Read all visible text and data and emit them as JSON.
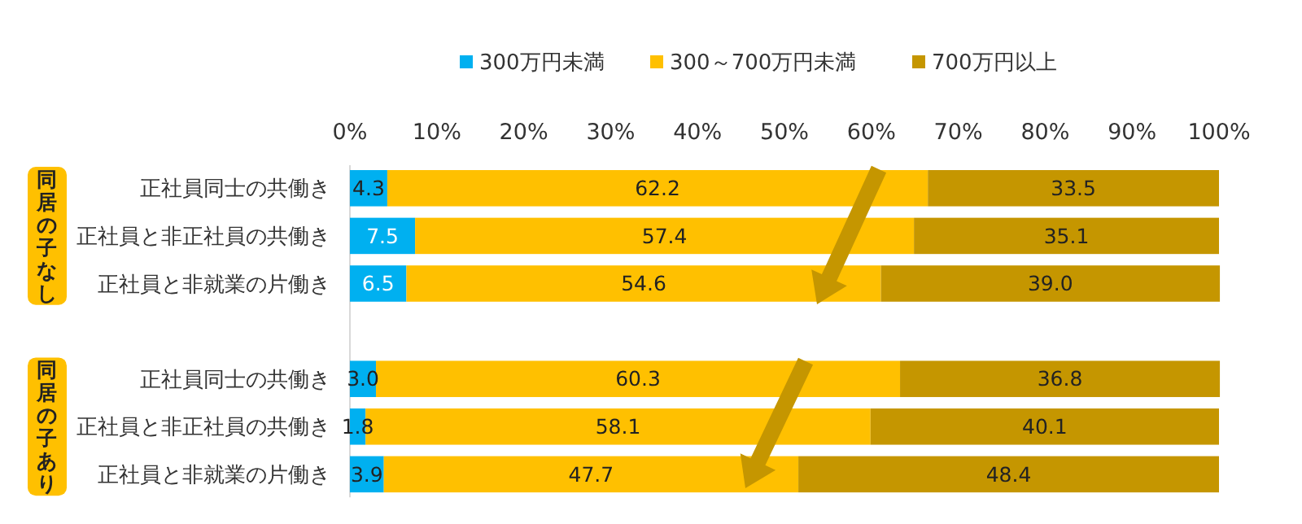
{
  "chart_data": {
    "type": "bar",
    "orientation": "horizontal",
    "stacked": true,
    "categories": [
      "正社員同士の共働き",
      "正社員と非正社員の共働き",
      "正社員と非就業の片働き",
      null,
      "正社員同士の共働き",
      "正社員と非正社員の共働き",
      "正社員と非就業の片働き"
    ],
    "series": [
      {
        "name": "300万円未満",
        "color": "#00b0f0",
        "values": [
          4.3,
          7.5,
          6.5,
          null,
          3.0,
          1.8,
          3.9
        ],
        "value_labels": [
          "4.3",
          "7.5",
          "6.5",
          null,
          "3.0",
          "1.8",
          "3.9"
        ]
      },
      {
        "name": "300～700万円未満",
        "color": "#ffc000",
        "values": [
          62.2,
          57.4,
          54.6,
          null,
          60.3,
          58.1,
          47.7
        ],
        "value_labels": [
          "62.2",
          "57.4",
          "54.6",
          null,
          "60.3",
          "58.1",
          "47.7"
        ]
      },
      {
        "name": "700万円以上",
        "color": "#c59600",
        "values": [
          33.5,
          35.1,
          39.0,
          null,
          36.8,
          40.1,
          48.4
        ],
        "value_labels": [
          "33.5",
          "35.1",
          "39.0",
          null,
          "36.8",
          "40.1",
          "48.4"
        ]
      }
    ],
    "xlim": [
      0,
      100
    ],
    "xticks": [
      {
        "value": 0,
        "label": "0%"
      },
      {
        "value": 10,
        "label": "10%"
      },
      {
        "value": 20,
        "label": "20%"
      },
      {
        "value": 30,
        "label": "30%"
      },
      {
        "value": 40,
        "label": "40%"
      },
      {
        "value": 50,
        "label": "50%"
      },
      {
        "value": 60,
        "label": "60%"
      },
      {
        "value": 70,
        "label": "70%"
      },
      {
        "value": 80,
        "label": "80%"
      },
      {
        "value": 90,
        "label": "90%"
      },
      {
        "value": 100,
        "label": "100%"
      }
    ],
    "annotations": [
      "同居の子なし",
      "同居の子あり"
    ],
    "legend": "top"
  }
}
